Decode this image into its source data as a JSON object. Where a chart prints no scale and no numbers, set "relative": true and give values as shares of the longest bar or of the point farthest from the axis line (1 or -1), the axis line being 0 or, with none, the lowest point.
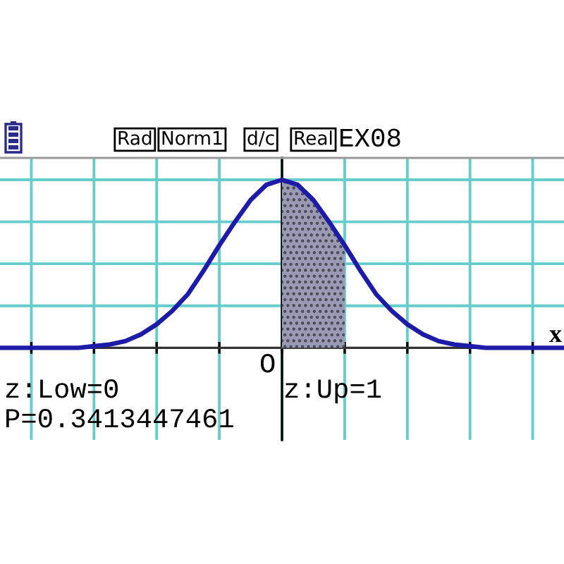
{
  "chart_data": {
    "type": "line",
    "relative": true,
    "xlabel": "x",
    "categories": [
      null,
      null,
      null,
      null,
      null,
      null,
      null,
      null,
      null,
      null,
      null,
      null,
      null,
      null,
      null,
      null,
      null,
      null,
      null,
      null,
      null,
      null,
      null,
      null,
      null,
      null,
      null,
      null,
      null,
      null,
      null,
      null,
      null,
      null,
      null,
      null,
      null
    ],
    "grid": true,
    "series": [
      {
        "type": "area",
        "color": "#9a9ab4",
        "values": [
          null,
          null,
          null,
          null,
          null,
          null,
          null,
          null,
          null,
          null,
          null,
          null,
          null,
          null,
          null,
          null,
          null,
          null,
          1,
          0.97,
          0.88,
          0.75,
          0.61,
          null,
          null,
          null,
          null,
          null,
          null,
          null,
          null,
          null,
          null,
          null,
          null,
          null,
          null
        ]
      },
      {
        "color": "#1c1ca8",
        "values": [
          0,
          0,
          0,
          0,
          0,
          0,
          0.01,
          0.02,
          0.04,
          0.08,
          0.14,
          0.22,
          0.32,
          0.46,
          0.61,
          0.75,
          0.88,
          0.97,
          1,
          0.97,
          0.88,
          0.75,
          0.61,
          0.46,
          0.32,
          0.22,
          0.14,
          0.08,
          0.04,
          0.02,
          0.01,
          0,
          0,
          0,
          0,
          0,
          0
        ]
      }
    ],
    "annotations": [
      "Rad",
      "Norm1",
      "d/c",
      "Real",
      "EX08",
      "O",
      "z:Low=0",
      "z:Up=1",
      "P=0.3413447461"
    ]
  }
}
